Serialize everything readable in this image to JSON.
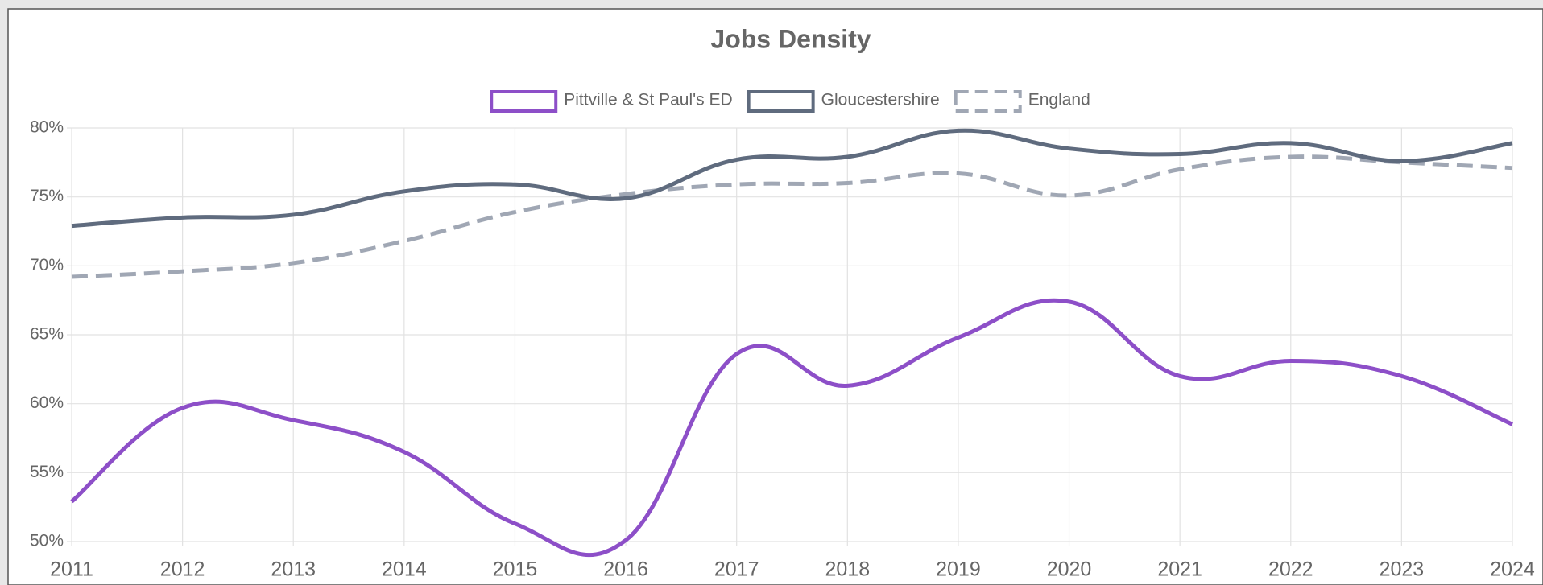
{
  "chart_data": {
    "type": "line",
    "title": "Jobs Density",
    "categories": [
      "2011",
      "2012",
      "2013",
      "2014",
      "2015",
      "2016",
      "2017",
      "2018",
      "2019",
      "2020",
      "2021",
      "2022",
      "2023",
      "2024"
    ],
    "series": [
      {
        "name": "Pittville & St Paul's ED",
        "color": "#8d4fc8",
        "dashed": false,
        "values": [
          52.9,
          59.7,
          58.8,
          56.5,
          51.3,
          50.1,
          63.6,
          61.3,
          64.8,
          67.4,
          62.0,
          63.1,
          62.0,
          58.5
        ]
      },
      {
        "name": "Gloucestershire",
        "color": "#5f6b7e",
        "dashed": false,
        "values": [
          72.9,
          73.5,
          73.7,
          75.4,
          75.9,
          74.9,
          77.7,
          77.9,
          79.8,
          78.5,
          78.1,
          78.9,
          77.6,
          78.9
        ]
      },
      {
        "name": "England",
        "color": "#a0a7b4",
        "dashed": true,
        "values": [
          69.2,
          69.6,
          70.2,
          71.8,
          73.9,
          75.2,
          75.9,
          76.0,
          76.7,
          75.1,
          77.0,
          77.9,
          77.5,
          77.1
        ]
      }
    ],
    "ylim": [
      50,
      80
    ],
    "yticks": [
      {
        "value": 50,
        "label": "50%"
      },
      {
        "value": 55,
        "label": "55%"
      },
      {
        "value": 60,
        "label": "60%"
      },
      {
        "value": 65,
        "label": "65%"
      },
      {
        "value": 70,
        "label": "70%"
      },
      {
        "value": 75,
        "label": "75%"
      },
      {
        "value": 80,
        "label": "80%"
      }
    ],
    "grid": true,
    "legend": "top"
  }
}
